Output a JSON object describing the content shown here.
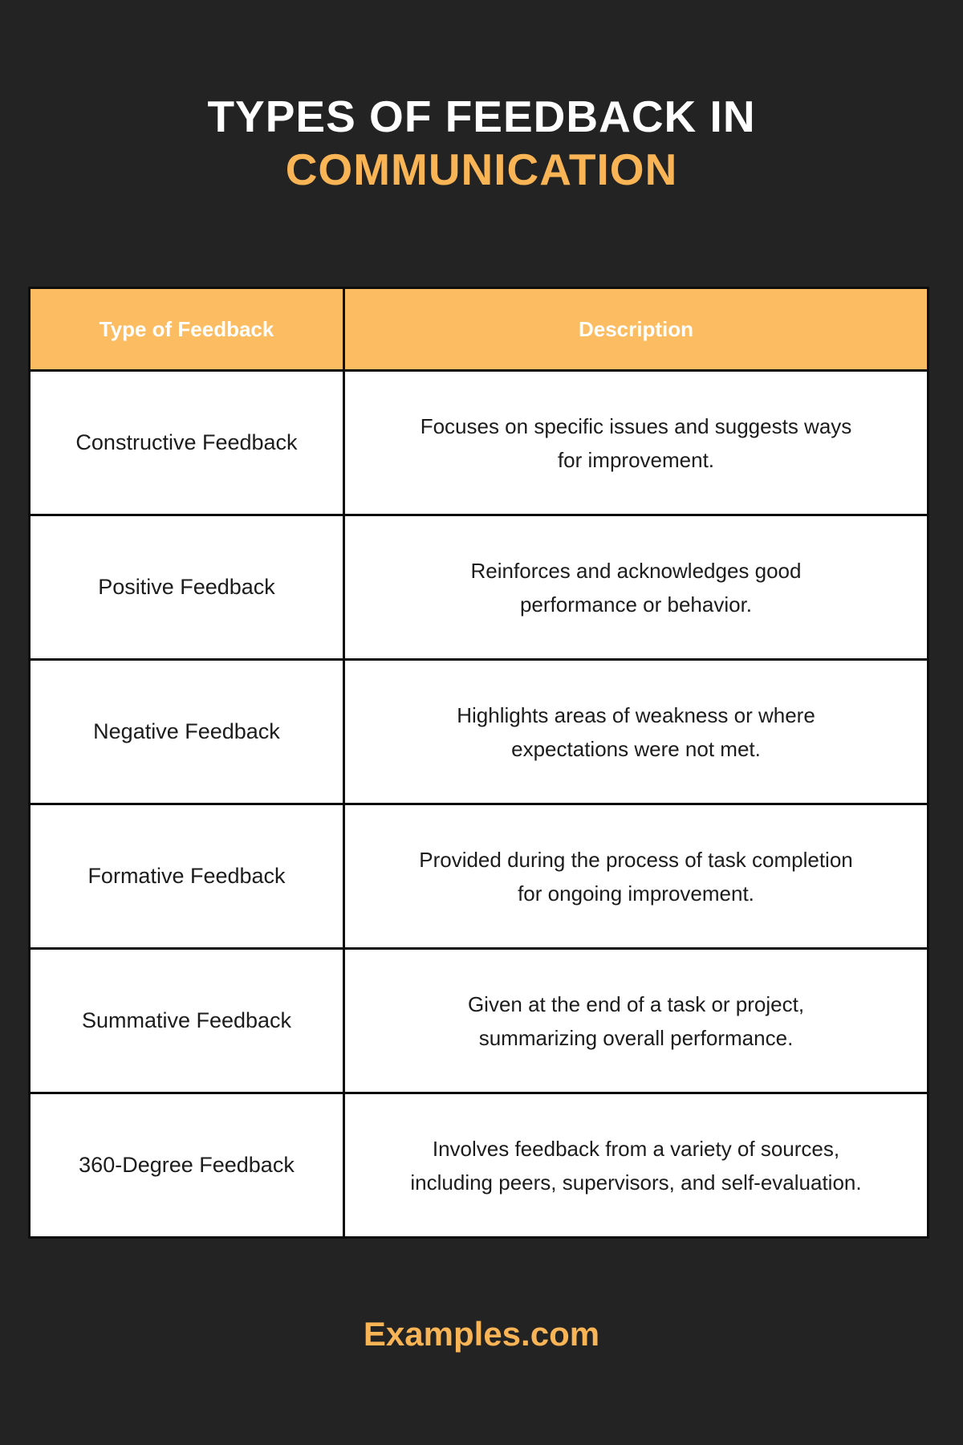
{
  "colors": {
    "background": "#232323",
    "accent_orange": "#F9B456",
    "header_orange": "#FBBC62",
    "line": "#0D0D0D",
    "cell_bg": "#FFFFFF",
    "text_dark": "#1C1C1C",
    "header_text": "#FFFFFF"
  },
  "title": {
    "line1": "TYPES OF FEEDBACK IN",
    "line2": "COMMUNICATION"
  },
  "table": {
    "headers": [
      "Type of Feedback",
      "Description"
    ],
    "rows": [
      {
        "type": "Constructive Feedback",
        "description": "Focuses on specific issues and suggests ways\nfor improvement."
      },
      {
        "type": "Positive Feedback",
        "description": "Reinforces and acknowledges good\nperformance or behavior."
      },
      {
        "type": "Negative Feedback",
        "description": "Highlights areas of weakness or where\nexpectations were not met."
      },
      {
        "type": "Formative Feedback",
        "description": "Provided during the process of task completion\nfor ongoing improvement."
      },
      {
        "type": "Summative Feedback",
        "description": "Given at the end of a task or project,\nsummarizing overall performance."
      },
      {
        "type": "360-Degree Feedback",
        "description": "Involves feedback from a variety of sources,\nincluding peers, supervisors, and self-evaluation."
      }
    ]
  },
  "footer": {
    "brand": "Examples.com"
  }
}
